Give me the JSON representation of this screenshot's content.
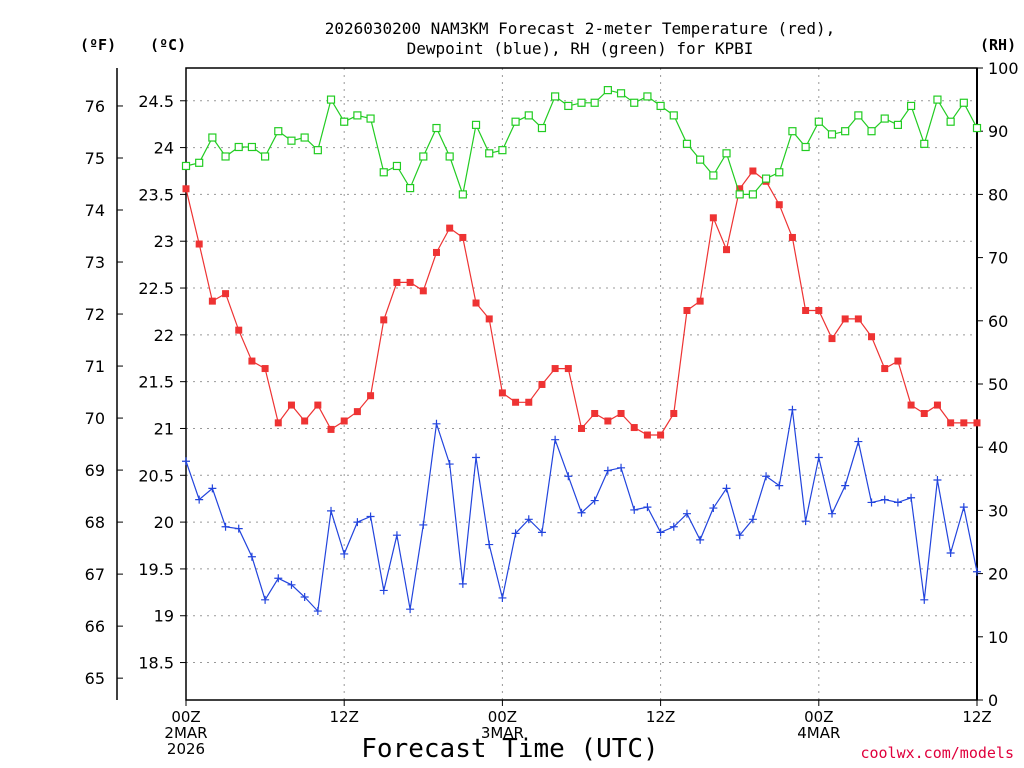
{
  "chart_data": {
    "type": "line",
    "title_line1": "2026030200 NAM3KM Forecast 2-meter Temperature (red),",
    "title_line2": "Dewpoint (blue), RH (green) for KPBI",
    "xlabel": "Forecast Time (UTC)",
    "credit": "coolwx.com/models",
    "units": {
      "fahrenheit": "(ºF)",
      "celsius": "(ºC)",
      "rh": "(RH)"
    },
    "hour_range": [
      0,
      60
    ],
    "celsius_range": [
      18.1,
      24.85
    ],
    "rh_range": [
      0,
      100
    ],
    "celsius_ticks": [
      "18.5",
      "19",
      "19.5",
      "20",
      "20.5",
      "21",
      "21.5",
      "22",
      "22.5",
      "23",
      "23.5",
      "24",
      "24.5"
    ],
    "fahrenheit_ticks": [
      "65",
      "66",
      "67",
      "68",
      "69",
      "70",
      "71",
      "72",
      "73",
      "74",
      "75",
      "76"
    ],
    "rh_ticks": [
      "0",
      "10",
      "20",
      "30",
      "40",
      "50",
      "60",
      "70",
      "80",
      "90",
      "100"
    ],
    "x_ticks": [
      {
        "hour": 0,
        "lines": [
          "00Z",
          "2MAR",
          "2026"
        ]
      },
      {
        "hour": 12,
        "lines": [
          "12Z"
        ]
      },
      {
        "hour": 24,
        "lines": [
          "00Z",
          "3MAR"
        ]
      },
      {
        "hour": 36,
        "lines": [
          "12Z"
        ]
      },
      {
        "hour": 48,
        "lines": [
          "00Z",
          "4MAR"
        ]
      },
      {
        "hour": 60,
        "lines": [
          "12Z"
        ]
      }
    ],
    "series": [
      {
        "name": "2-meter Temperature",
        "unit": "°C",
        "color": "#ee3333",
        "marker": "filled-square",
        "values": [
          23.56,
          22.97,
          22.36,
          22.44,
          22.05,
          21.72,
          21.64,
          21.06,
          21.25,
          21.08,
          21.25,
          20.99,
          21.08,
          21.18,
          21.35,
          22.16,
          22.56,
          22.56,
          22.47,
          22.88,
          23.14,
          23.04,
          22.34,
          22.17,
          21.38,
          21.28,
          21.28,
          21.47,
          21.64,
          21.64,
          21.0,
          21.16,
          21.08,
          21.16,
          21.01,
          20.93,
          20.93,
          21.16,
          22.26,
          22.36,
          23.25,
          22.91,
          23.56,
          23.75,
          23.64,
          23.39,
          23.04,
          22.26,
          22.26,
          21.96,
          22.17,
          22.17,
          21.98,
          21.64,
          21.72,
          21.25,
          21.16,
          21.25,
          21.06,
          21.06,
          21.06
        ]
      },
      {
        "name": "Dewpoint",
        "unit": "°C",
        "color": "#2244dd",
        "marker": "plus",
        "values": [
          20.65,
          20.24,
          20.36,
          19.95,
          19.93,
          19.63,
          19.17,
          19.4,
          19.33,
          19.2,
          19.05,
          20.12,
          19.66,
          20.0,
          20.06,
          19.27,
          19.86,
          19.07,
          19.97,
          21.05,
          20.62,
          19.34,
          20.69,
          19.76,
          19.19,
          19.88,
          20.03,
          19.89,
          20.88,
          20.49,
          20.1,
          20.23,
          20.55,
          20.58,
          20.13,
          20.16,
          19.89,
          19.95,
          20.09,
          19.81,
          20.15,
          20.36,
          19.86,
          20.03,
          20.49,
          20.39,
          21.2,
          20.01,
          20.69,
          20.09,
          20.39,
          20.86,
          20.21,
          20.24,
          20.21,
          20.26,
          19.17,
          20.45,
          19.67,
          20.16,
          19.47
        ]
      },
      {
        "name": "RH",
        "unit": "%",
        "color": "#22cc22",
        "marker": "open-square",
        "values": [
          84.5,
          85.0,
          89.0,
          86.0,
          87.5,
          87.5,
          86.0,
          90.0,
          88.5,
          89.0,
          87.0,
          95.0,
          91.5,
          92.5,
          92.0,
          83.5,
          84.5,
          81.0,
          86.0,
          90.5,
          86.0,
          80.0,
          91.0,
          86.5,
          87.0,
          91.5,
          92.5,
          90.5,
          95.5,
          94.0,
          94.5,
          94.5,
          96.5,
          96.0,
          94.5,
          95.5,
          94.0,
          92.5,
          88.0,
          85.5,
          83.0,
          86.5,
          80.0,
          80.0,
          82.5,
          83.5,
          90.0,
          87.5,
          91.5,
          89.5,
          90.0,
          92.5,
          90.0,
          92.0,
          91.0,
          94.0,
          88.0,
          95.0,
          91.5,
          94.5,
          90.5
        ]
      }
    ]
  }
}
